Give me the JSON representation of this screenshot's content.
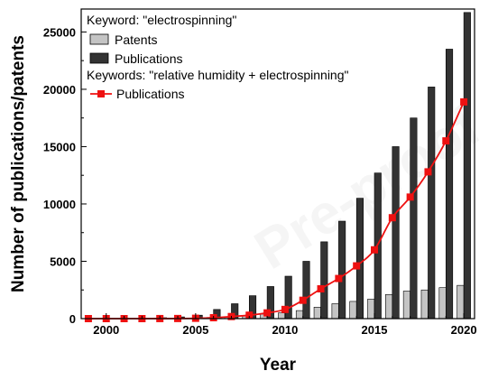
{
  "chart_data": {
    "type": "bar",
    "xlabel": "Year",
    "ylabel": "Number of publications/patents",
    "xlim": [
      1999,
      2020
    ],
    "ylim": [
      0,
      27000
    ],
    "x_ticks": [
      "2000",
      "2005",
      "2010",
      "2015",
      "2020"
    ],
    "y_ticks": [
      "0",
      "5000",
      "10000",
      "15000",
      "20000",
      "25000"
    ],
    "grid": false,
    "legend_position": "top-left",
    "legend_header_1": "Keyword: \"electrospinning\"",
    "legend_header_2": "Keywords: \"relative humidity + electrospinning\"",
    "x": [
      1999,
      2000,
      2001,
      2002,
      2003,
      2004,
      2005,
      2006,
      2007,
      2008,
      2009,
      2010,
      2011,
      2012,
      2013,
      2014,
      2015,
      2016,
      2017,
      2018,
      2019,
      2020
    ],
    "series": [
      {
        "name": "Patents",
        "kind": "bar",
        "color": "#c4c4c4",
        "values": [
          0,
          0,
          0,
          0,
          10,
          20,
          50,
          100,
          150,
          250,
          400,
          500,
          700,
          1000,
          1300,
          1500,
          1700,
          2100,
          2400,
          2500,
          2700,
          2900
        ]
      },
      {
        "name": "Publications",
        "kind": "bar",
        "color": "#333333",
        "values": [
          0,
          0,
          10,
          20,
          80,
          150,
          300,
          800,
          1300,
          2000,
          2800,
          3700,
          5000,
          6700,
          8500,
          10500,
          12700,
          15000,
          17500,
          20200,
          23500,
          26700
        ]
      },
      {
        "name": "Publications",
        "kind": "line",
        "color": "#ee1111",
        "values": [
          0,
          0,
          0,
          0,
          5,
          10,
          30,
          80,
          180,
          300,
          500,
          800,
          1600,
          2600,
          3500,
          4600,
          6000,
          8800,
          10600,
          12800,
          15500,
          18900
        ]
      }
    ]
  }
}
